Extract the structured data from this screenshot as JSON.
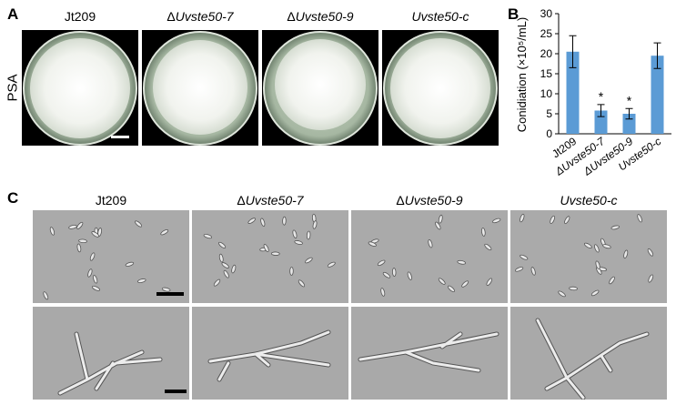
{
  "panels": {
    "a": "A",
    "b": "B",
    "c": "C"
  },
  "medium_label": "PSA",
  "strains": [
    {
      "prefix": "",
      "name": "Jt209"
    },
    {
      "prefix": "Δ",
      "name": "Uvste50-7"
    },
    {
      "prefix": "Δ",
      "name": "Uvste50-9"
    },
    {
      "prefix": "",
      "name": "Uvste50-c"
    }
  ],
  "chart_data": {
    "type": "bar",
    "categories": [
      "Jt209",
      "ΔUvste50-7",
      "ΔUvste50-9",
      "Uvste50-c"
    ],
    "values": [
      20.5,
      5.8,
      5.0,
      19.5
    ],
    "errors": [
      4.0,
      1.5,
      1.3,
      3.2
    ],
    "significance": [
      "",
      "*",
      "*",
      ""
    ],
    "ylabel": "Conidiation (×10⁵/mL)",
    "ylim": [
      0,
      30
    ],
    "yticks": [
      0,
      5,
      10,
      15,
      20,
      25,
      30
    ],
    "bar_color": "#5b9bd5"
  }
}
